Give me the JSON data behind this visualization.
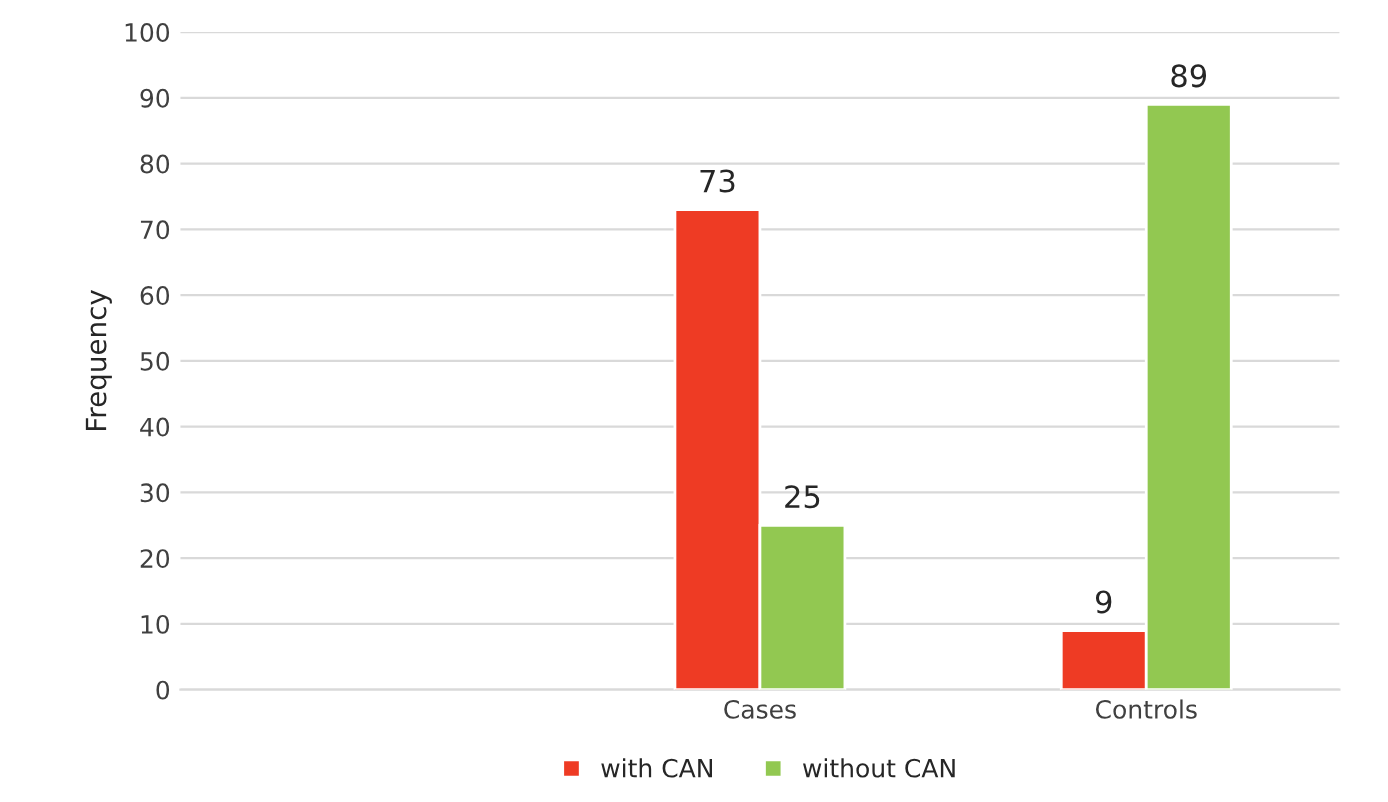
{
  "chart_data": {
    "type": "bar",
    "ylabel": "Frequency",
    "categories": [
      null,
      "Cases",
      "Controls"
    ],
    "series": [
      {
        "name": "with CAN",
        "color": "#ee3b24",
        "values": [
          null,
          73,
          9
        ]
      },
      {
        "name": "without CAN",
        "color": "#92c851",
        "values": [
          null,
          25,
          89
        ]
      }
    ],
    "ylim": [
      0,
      100
    ],
    "yticks": [
      0,
      10,
      20,
      30,
      40,
      50,
      60,
      70,
      80,
      90,
      100
    ],
    "grid": "y",
    "legend": "bottom",
    "data_labels": true
  }
}
